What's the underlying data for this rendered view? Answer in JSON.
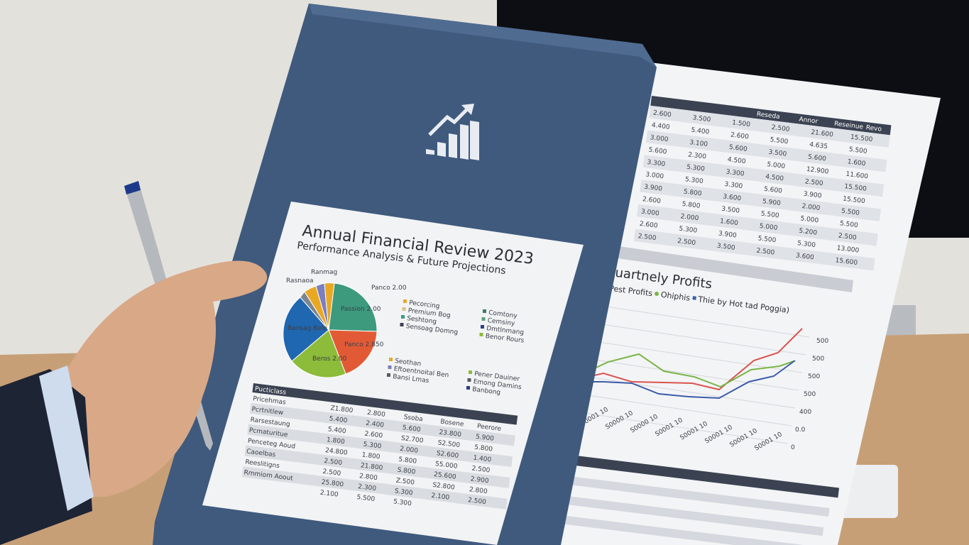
{
  "cover": {
    "logo_icon": "rising-bar-chart-arrow-icon",
    "title": "Annual Financial Review 2023",
    "subtitle": "Performance Analysis & Future Projections",
    "pie_labels": [
      "Ranmag",
      "Rasnaoa",
      "Panco 2.00",
      "Passion 2.00",
      "Bansag Bele",
      "Panco 2.850",
      "Beros 2.00"
    ],
    "legend_left": [
      "Pecorcing",
      "Premium Bog",
      "Seshtong",
      "Sensoag Domng"
    ],
    "legend_right": [
      "Comtony",
      "Cemsiny",
      "Dmtlnmang",
      "Benor Rours"
    ],
    "legend_bottom_left": [
      "Seothan",
      "Eftoentnoital Ben",
      "Bansi Lmas"
    ],
    "legend_bottom_right": [
      "Pener Dauiner",
      "Emong Damins",
      "Banbong"
    ],
    "table_header": "Pucticlass",
    "table_rows": [
      [
        "Pricehmas",
        "Z1.800",
        "2.800",
        "Ssoba",
        "Bosene",
        "Peerore"
      ],
      [
        "Pcrtnitlew",
        "5.400",
        "2.400",
        "5.600",
        "23.800",
        "5.900"
      ],
      [
        "Rarsestaung",
        "5.400",
        "2.600",
        "S2.700",
        "S2.500",
        "5.800"
      ],
      [
        "Pcmaturitue",
        "1.800",
        "5.300",
        "2.000",
        "S2.600",
        "1.400"
      ],
      [
        "Penceteg Aoud",
        "24.800",
        "1.800",
        "5.800",
        "55.000",
        "2.500"
      ],
      [
        "Caoelbas",
        "2.500",
        "21.800",
        "S.800",
        "25.600",
        "2.900"
      ],
      [
        "Reeslitigns",
        "2.500",
        "2.800",
        "Z.500",
        "S2.800",
        "2.800"
      ],
      [
        "Rmmiom Aoout",
        "25.800",
        "2.300",
        "S.300",
        "2.100",
        "2.500"
      ],
      [
        "",
        "2.100",
        "5.500",
        "5.300",
        "",
        ""
      ]
    ]
  },
  "report": {
    "chart_title": "Quartnely Profits",
    "legend": [
      "Pest Profits",
      "Ohiphis",
      "Thie by Hot tad Poggia)"
    ],
    "y_ticks": [
      "500",
      "500",
      "500",
      "500",
      "400",
      "0.0",
      "0"
    ],
    "x_ticks": [
      "S0001 10",
      "S0000 10",
      "S0000 10",
      "S0001 10",
      "S0001 10",
      "S0001 10",
      "S0001 10",
      "S0001 10"
    ],
    "series_colors": [
      "#d9534f",
      "#7ab648",
      "#3b5ca8"
    ],
    "top_table_headers": [
      "Reseda",
      "Annor",
      "Reseinue",
      "Revo"
    ],
    "top_table_rows": [
      [
        "2.600",
        "3.500",
        "1.500",
        "2.500",
        "21.600",
        "15.500"
      ],
      [
        "4.400",
        "5.400",
        "2.600",
        "5.500",
        "4.635",
        "5.500"
      ],
      [
        "3.000",
        "3.100",
        "5.600",
        "3.500",
        "5.600",
        "1.600"
      ],
      [
        "5.600",
        "2.300",
        "4.500",
        "5.000",
        "12.900",
        "11.600"
      ],
      [
        "3.300",
        "5.300",
        "3.300",
        "4.500",
        "2.500",
        "15.500"
      ],
      [
        "3.000",
        "5.300",
        "3.300",
        "5.600",
        "3.900",
        "15.500"
      ],
      [
        "3.900",
        "5.800",
        "3.600",
        "5.900",
        "2.000",
        "5.500"
      ],
      [
        "2.600",
        "5.800",
        "3.500",
        "5.500",
        "5.000",
        "5.500"
      ],
      [
        "3.000",
        "2.000",
        "1.600",
        "5.000",
        "5.200",
        "2.500"
      ],
      [
        "2.600",
        "5.300",
        "3.900",
        "5.500",
        "5.300",
        "13.000"
      ],
      [
        "2.500",
        "2.500",
        "3.500",
        "2.500",
        "3.600",
        "15.600"
      ]
    ]
  }
}
